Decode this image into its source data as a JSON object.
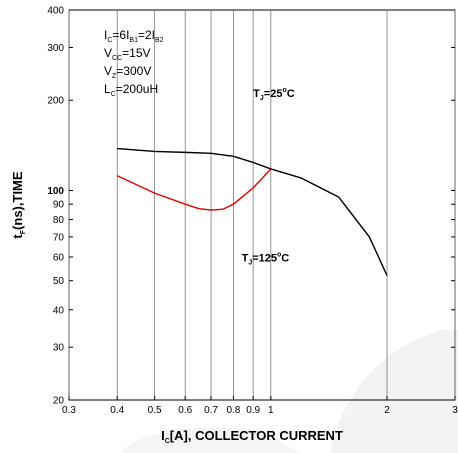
{
  "chart_data": {
    "type": "line",
    "title": "",
    "xlabel": {
      "main": "I",
      "sub": "C",
      "rest": "[A], COLLECTOR CURRENT"
    },
    "ylabel": {
      "main": "t",
      "sub": "F",
      "rest": "(ns),TIME"
    },
    "xscale": "log",
    "yscale": "log",
    "xlim": [
      0.3,
      3
    ],
    "ylim": [
      20,
      400
    ],
    "grid": "vertical",
    "xticks": [
      {
        "v": 0.3,
        "label": "0.3"
      },
      {
        "v": 0.4,
        "label": "0.4"
      },
      {
        "v": 0.5,
        "label": "0.5"
      },
      {
        "v": 0.6,
        "label": "0.6"
      },
      {
        "v": 0.7,
        "label": "0.7"
      },
      {
        "v": 0.8,
        "label": "0.8"
      },
      {
        "v": 0.9,
        "label": "0.9"
      },
      {
        "v": 1,
        "label": "1"
      },
      {
        "v": 2,
        "label": "2"
      },
      {
        "v": 3,
        "label": "3"
      }
    ],
    "yticks": [
      {
        "v": 20,
        "label": "20",
        "bold": false
      },
      {
        "v": 30,
        "label": "30",
        "bold": false
      },
      {
        "v": 40,
        "label": "40",
        "bold": false
      },
      {
        "v": 50,
        "label": "50",
        "bold": false
      },
      {
        "v": 60,
        "label": "60",
        "bold": false
      },
      {
        "v": 70,
        "label": "70",
        "bold": false
      },
      {
        "v": 80,
        "label": "80",
        "bold": false
      },
      {
        "v": 90,
        "label": "90",
        "bold": false
      },
      {
        "v": 100,
        "label": "100",
        "bold": true
      },
      {
        "v": 200,
        "label": "200",
        "bold": false
      },
      {
        "v": 300,
        "label": "300",
        "bold": false
      },
      {
        "v": 400,
        "label": "400",
        "bold": false
      }
    ],
    "conditions": [
      [
        {
          "t": "I"
        },
        {
          "t": "C",
          "sub": true
        },
        {
          "t": "=6I"
        },
        {
          "t": "B1",
          "sub": true
        },
        {
          "t": "=2I"
        },
        {
          "t": "B2",
          "sub": true
        }
      ],
      [
        {
          "t": "V"
        },
        {
          "t": "CC",
          "sub": true
        },
        {
          "t": "=15V"
        }
      ],
      [
        {
          "t": "V"
        },
        {
          "t": "Z",
          "sub": true
        },
        {
          "t": "=300V"
        }
      ],
      [
        {
          "t": "L"
        },
        {
          "t": "C",
          "sub": true
        },
        {
          "t": "=200uH"
        }
      ]
    ],
    "annotations": [
      {
        "id": "tj25",
        "x": 0.9,
        "y": 205,
        "parts": [
          {
            "t": "T"
          },
          {
            "t": "J",
            "sub": true
          },
          {
            "t": "=25"
          },
          {
            "t": "o",
            "sup": true
          },
          {
            "t": "C"
          }
        ]
      },
      {
        "id": "tj125",
        "x": 0.84,
        "y": 58,
        "parts": [
          {
            "t": "T"
          },
          {
            "t": "J",
            "sub": true
          },
          {
            "t": "=125"
          },
          {
            "t": "o",
            "sup": true
          },
          {
            "t": "C"
          }
        ]
      }
    ],
    "series": [
      {
        "color": "#000000",
        "points": [
          [
            0.4,
            138
          ],
          [
            0.5,
            135
          ],
          [
            0.6,
            134
          ],
          [
            0.7,
            133
          ],
          [
            0.8,
            130
          ],
          [
            0.9,
            124
          ],
          [
            1,
            118
          ],
          [
            1.2,
            110
          ],
          [
            1.5,
            95
          ],
          [
            1.8,
            70
          ],
          [
            2,
            52
          ]
        ]
      },
      {
        "color": "#e00000",
        "points": [
          [
            0.4,
            112
          ],
          [
            0.5,
            98
          ],
          [
            0.6,
            90
          ],
          [
            0.65,
            87
          ],
          [
            0.7,
            86
          ],
          [
            0.75,
            86.5
          ],
          [
            0.8,
            90
          ],
          [
            0.9,
            102
          ],
          [
            1,
            118
          ]
        ]
      }
    ]
  }
}
